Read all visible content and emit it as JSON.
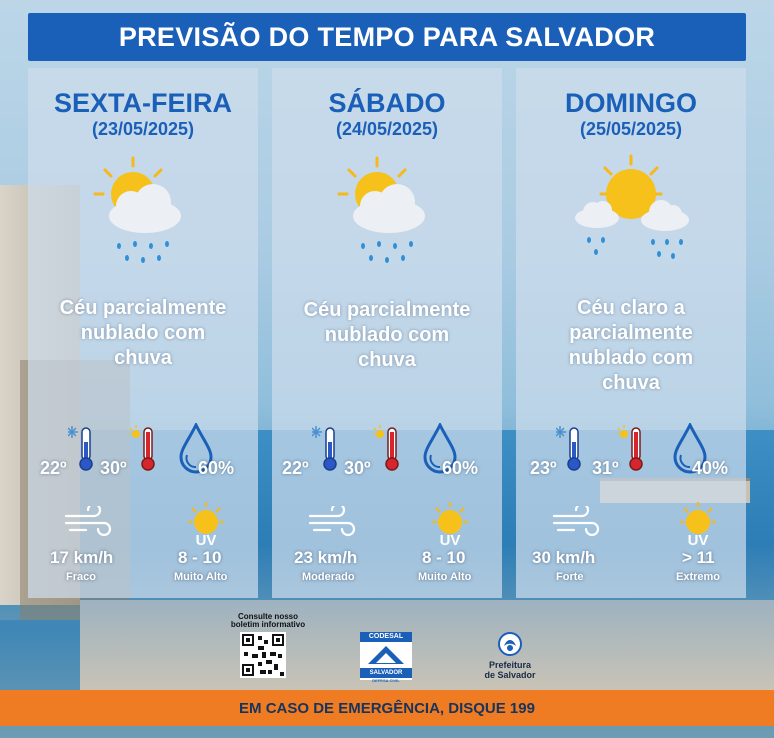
{
  "title": "PREVISÃO DO TEMPO PARA SALVADOR",
  "days": [
    {
      "day": "SEXTA-FEIRA",
      "date": "(23/05/2025)",
      "icon": "partly-cloudy-rain-icon",
      "condition_lines": [
        "Céu parcialmente",
        "nublado com",
        "chuva"
      ],
      "temp_min": "22º",
      "temp_max": "30º",
      "humidity": "60%",
      "wind_speed": "17 km/h",
      "wind_label": "Fraco",
      "uv_value": "8 - 10",
      "uv_label": "Muito Alto"
    },
    {
      "day": "SÁBADO",
      "date": "(24/05/2025)",
      "icon": "partly-cloudy-rain-icon",
      "condition_lines": [
        "Céu parcialmente",
        "nublado com",
        "chuva"
      ],
      "temp_min": "22º",
      "temp_max": "30º",
      "humidity": "60%",
      "wind_speed": "23 km/h",
      "wind_label": "Moderado",
      "uv_value": "8 - 10",
      "uv_label": "Muito Alto"
    },
    {
      "day": "DOMINGO",
      "date": "(25/05/2025)",
      "icon": "sun-clouds-rain-icon",
      "condition_lines": [
        "Céu claro a",
        "parcialmente",
        "nublado com",
        "chuva"
      ],
      "temp_min": "23º",
      "temp_max": "31º",
      "humidity": "40%",
      "wind_speed": "30 km/h",
      "wind_label": "Forte",
      "uv_value": "> 11",
      "uv_label": "Extremo"
    }
  ],
  "uv_icon_text": "UV",
  "consult_text": [
    "Consulte nosso",
    "boletim informativo"
  ],
  "codesal": {
    "top": "CODESAL",
    "bottom": "SALVADOR",
    "sub": "DEFESA CIVIL"
  },
  "prefeitura": [
    "Prefeitura",
    "de Salvador"
  ],
  "footer": "EM CASO DE EMERGÊNCIA, DISQUE 199",
  "colors": {
    "primary": "#1a5fb8",
    "footer": "#ef7b22",
    "sun": "#f6c11a",
    "thermo_cold": "#2b58c4",
    "thermo_hot": "#d6252c"
  }
}
